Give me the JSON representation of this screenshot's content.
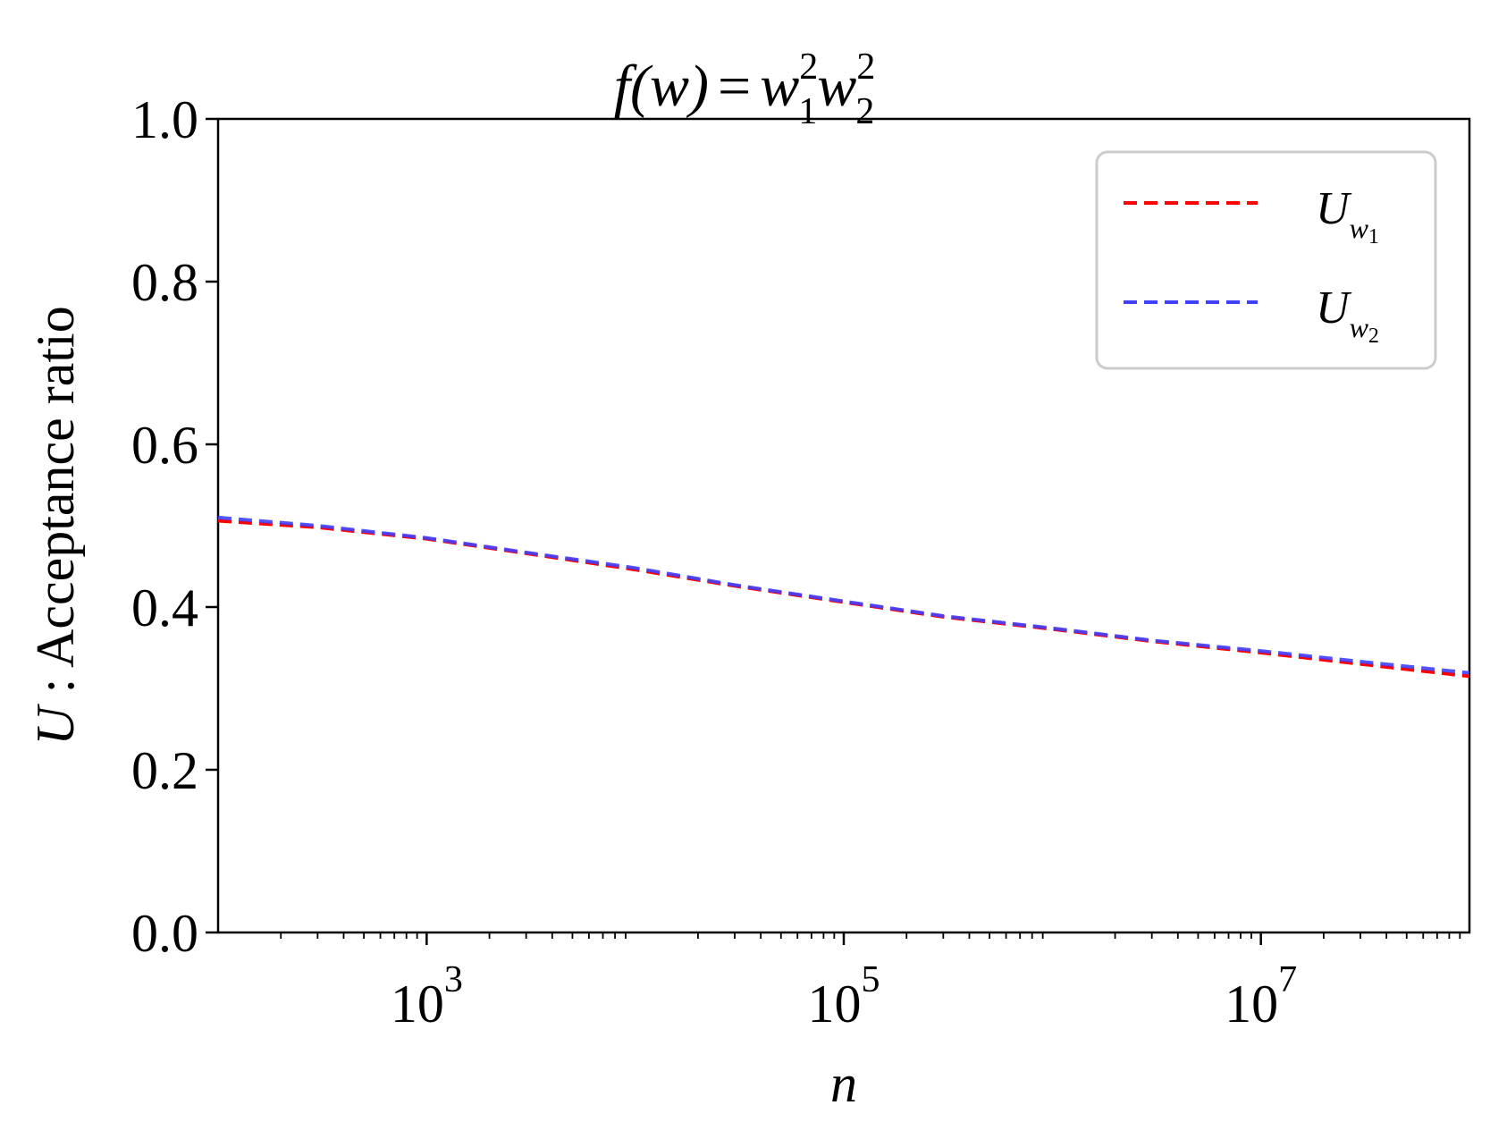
{
  "chart_data": {
    "type": "line",
    "title": {
      "prefix": "f(w)",
      "equals": "=",
      "base1": "w",
      "sub1": "1",
      "sup1": "2",
      "base2": "w",
      "sub2": "2",
      "sup2": "2"
    },
    "xlabel": "n",
    "ylabel": {
      "var": "U",
      "rest": " : Acceptance ratio"
    },
    "xscale": "log",
    "xlim": [
      100,
      100000000
    ],
    "ylim": [
      0,
      1
    ],
    "x_ticks": [
      {
        "value": 1000,
        "base": "10",
        "exp": "3"
      },
      {
        "value": 100000,
        "base": "10",
        "exp": "5"
      },
      {
        "value": 10000000,
        "base": "10",
        "exp": "7"
      }
    ],
    "y_ticks": [
      {
        "value": 0.0,
        "label": "0.0"
      },
      {
        "value": 0.2,
        "label": "0.2"
      },
      {
        "value": 0.4,
        "label": "0.4"
      },
      {
        "value": 0.6,
        "label": "0.6"
      },
      {
        "value": 0.8,
        "label": "0.8"
      },
      {
        "value": 1.0,
        "label": "1.0"
      }
    ],
    "grid": false,
    "legend_position": "top-right",
    "series": [
      {
        "label_base": "U",
        "label_sub_base": "w",
        "label_sub_index": "1",
        "color": "#ff0000",
        "style": "dashed",
        "x": [
          100,
          300,
          1000,
          3000,
          10000,
          30000,
          100000,
          300000,
          1000000,
          3000000,
          10000000,
          30000000,
          100000000
        ],
        "y": [
          0.506,
          0.498,
          0.484,
          0.466,
          0.446,
          0.426,
          0.406,
          0.388,
          0.373,
          0.358,
          0.344,
          0.33,
          0.315
        ]
      },
      {
        "label_base": "U",
        "label_sub_base": "w",
        "label_sub_index": "2",
        "color": "#4040ff",
        "style": "dashed",
        "x": [
          100,
          300,
          1000,
          3000,
          10000,
          30000,
          100000,
          300000,
          1000000,
          3000000,
          10000000,
          30000000,
          100000000
        ],
        "y": [
          0.51,
          0.5,
          0.485,
          0.467,
          0.448,
          0.427,
          0.407,
          0.389,
          0.374,
          0.359,
          0.346,
          0.333,
          0.319
        ]
      }
    ]
  }
}
